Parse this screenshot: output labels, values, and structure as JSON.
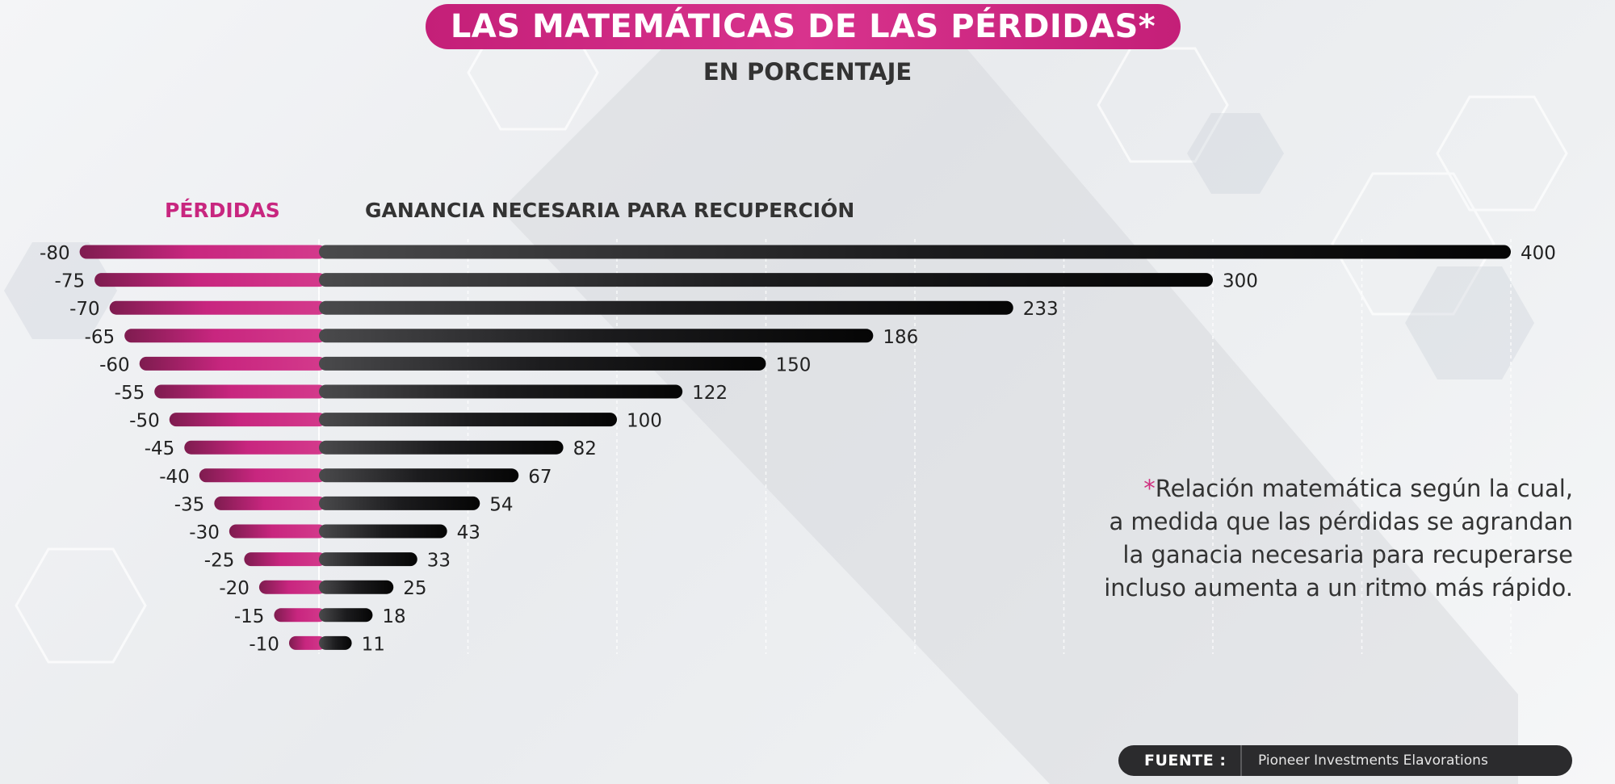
{
  "title": "LAS MATEMÁTICAS DE LAS PÉRDIDAS*",
  "subtitle": "EN PORCENTAJE",
  "chart_data": {
    "type": "bar",
    "orientation": "horizontal-diverging",
    "series": [
      {
        "name": "PÉRDIDAS",
        "color": "#c8267f",
        "values": [
          -80,
          -75,
          -70,
          -65,
          -60,
          -55,
          -50,
          -45,
          -40,
          -35,
          -30,
          -25,
          -20,
          -15,
          -10
        ]
      },
      {
        "name": "GANANCIA NECESARIA PARA RECUPERCIÓN",
        "color": "#111111",
        "values": [
          400,
          300,
          233,
          186,
          150,
          122,
          100,
          82,
          67,
          54,
          43,
          33,
          25,
          18,
          11
        ]
      }
    ],
    "loss_labels": [
      "-80",
      "-75",
      "-70",
      "-65",
      "-60",
      "-55",
      "-50",
      "-45",
      "-40",
      "-35",
      "-30",
      "-25",
      "-20",
      "-15",
      "-10"
    ],
    "gain_labels": [
      "400",
      "300",
      "233",
      "186",
      "150",
      "122",
      "100",
      "82",
      "67",
      "54",
      "43",
      "33",
      "25",
      "18",
      "11"
    ]
  },
  "note": {
    "star": "*",
    "lines": [
      "Relación matemática según la cual,",
      "a medida que las pérdidas se agrandan",
      "la ganacia necesaria para recuperarse",
      "incluso aumenta a un ritmo más rápido."
    ]
  },
  "source": {
    "label": "FUENTE :",
    "value": "Pioneer Investments Elavorations"
  },
  "colors": {
    "accent": "#c8267f",
    "bar_dark": "#111111",
    "text_dark": "#333333"
  }
}
